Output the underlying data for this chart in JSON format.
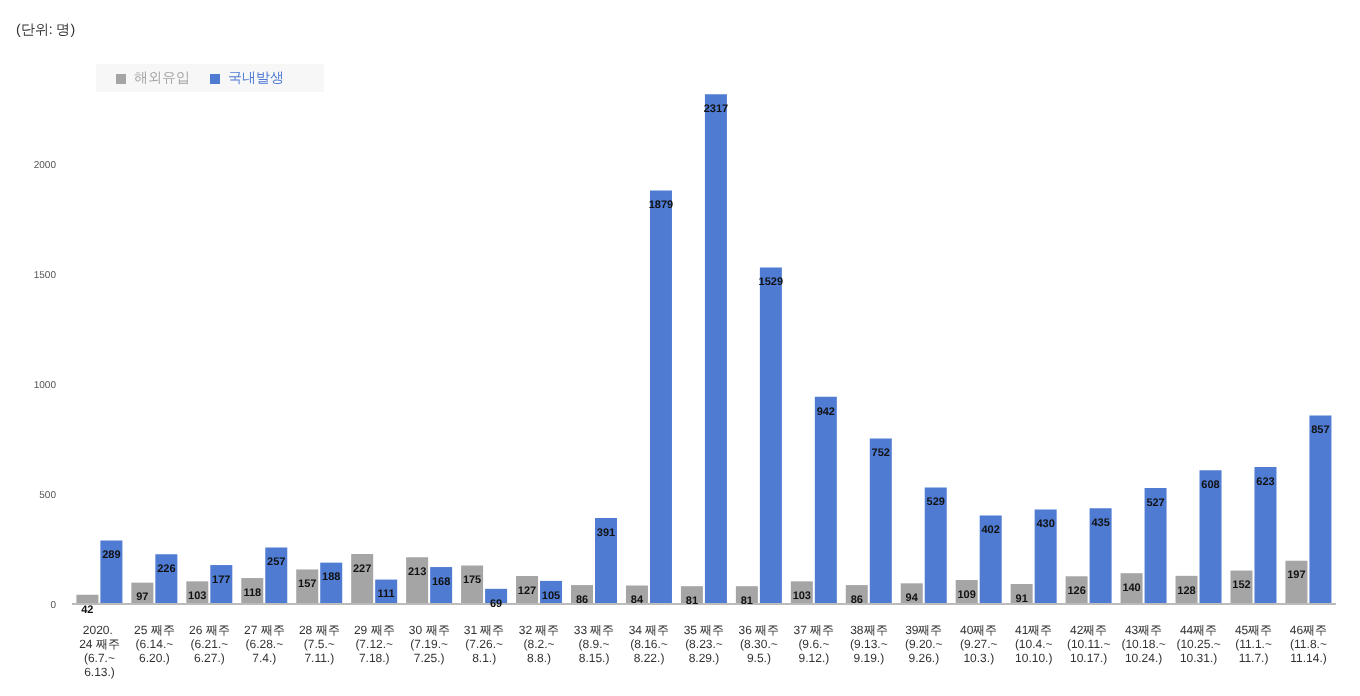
{
  "chart_data": {
    "type": "bar",
    "ylabel": "(단위: 명)",
    "categories": [
      "2020. 24 째주\n(6.7.~6.13.)",
      "25 째주\n(6.14.~6.20.)",
      "26 째주\n(6.21.~6.27.)",
      "27 째주\n(6.28.~7.4.)",
      "28 째주\n(7.5.~7.11.)",
      "29 째주\n(7.12.~7.18.)",
      "30 째주\n(7.19.~7.25.)",
      "31 째주\n(7.26.~8.1.)",
      "32 째주\n(8.2.~8.8.)",
      "33 째주\n(8.9.~8.15.)",
      "34 째주\n(8.16.~8.22.)",
      "35 째주\n(8.23.~8.29.)",
      "36 째주\n(8.30.~9.5.)",
      "37 째주\n(9.6.~9.12.)",
      "38째주\n(9.13.~9.19.)",
      "39째주\n(9.20.~9.26.)",
      "40째주\n(9.27.~10.3.)",
      "41째주\n(10.4.~10.10.)",
      "42째주\n(10.11.~10.17.)",
      "43째주\n(10.18.~10.24.)",
      "44째주\n(10.25.~10.31.)",
      "45째주\n(11.1.~11.7.)",
      "46째주\n(11.8.~11.14.)"
    ],
    "series": [
      {
        "name": "해외유입",
        "color": "#a5a5a5",
        "values": [
          42,
          97,
          103,
          118,
          157,
          227,
          213,
          175,
          127,
          86,
          84,
          81,
          81,
          103,
          86,
          94,
          109,
          91,
          126,
          140,
          128,
          152,
          197
        ]
      },
      {
        "name": "국내발생",
        "color": "#4f7bd3",
        "values": [
          289,
          226,
          177,
          257,
          188,
          111,
          168,
          69,
          105,
          391,
          1879,
          2317,
          1529,
          942,
          752,
          529,
          402,
          430,
          435,
          527,
          608,
          623,
          857
        ]
      }
    ],
    "ylim": [
      0,
      2400
    ],
    "yticks": [
      0,
      500,
      1000,
      1500,
      2000
    ],
    "grid": false,
    "legend": "top left",
    "data_labels": true
  }
}
